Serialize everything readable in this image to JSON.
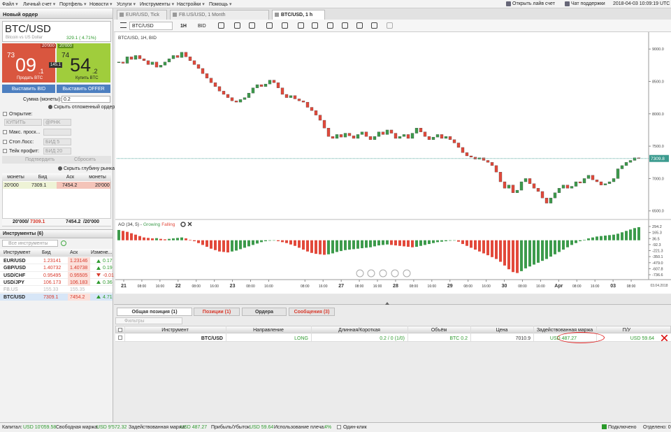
{
  "menu": {
    "items": [
      "Файл",
      "Личный счет",
      "Портфель",
      "Новости",
      "Услуги",
      "Инструменты",
      "Настройки",
      "Помощь"
    ],
    "live": "Открыть лайв счет",
    "chat": "Чат поддержки",
    "clock": "2018-04-03 10:09:19 UTC"
  },
  "order": {
    "title": "Новый ордер",
    "symbol": "BTC/USD",
    "description": "Bitcoin vs US Dollar",
    "change": "329.1 ( 4.71%)",
    "sell": {
      "small": "73",
      "big": "09",
      "frac": ".1",
      "label": "Продать BTC",
      "size": "20'000"
    },
    "buy": {
      "small": "74",
      "big": "54",
      "frac": ".2",
      "label": "Купить BTC",
      "size": "20'000"
    },
    "spread": "145.1",
    "bid_button": "Выставить BID",
    "offer_button": "Выставить OFFER",
    "amount_label": "Сумма (монеты):",
    "amount": "0.2",
    "hide_pending": "Скрыть отложенный ордер",
    "open_label": "Открытие:",
    "open_side": "КУПИТЬ",
    "open_type": "@PHK",
    "slippage": "Макс. проск...",
    "stop_loss": "Стоп Лосс:",
    "stop_value": "БИД 5",
    "take_profit": "Тейк профит:",
    "take_value": "БИД 20",
    "confirm": "Подтвердить",
    "reset": "Сбросить",
    "hide_depth": "Скрыть глубину рынка",
    "depth": {
      "headers": [
        "монеты",
        "Бид",
        "Аск",
        "монеты"
      ],
      "row": [
        "20'000",
        "7309.1",
        "7454.2",
        "20'000"
      ],
      "total_bid": "20'000/",
      "total_bid_price": "7309.1",
      "total_ask_price": "7454.2",
      "total_ask": "/20'000"
    }
  },
  "instruments": {
    "title": "Инструменты (6)",
    "search": "Все инструменты",
    "headers": [
      "Инструмент",
      "Бид",
      "Аск",
      "Измене..."
    ],
    "rows": [
      {
        "name": "EUR/USD",
        "bid": "1.23141",
        "ask": "1.23146",
        "change": "0.17"
      },
      {
        "name": "GBP/USD",
        "bid": "1.40732",
        "ask": "1.40738",
        "change": "0.19"
      },
      {
        "name": "USD/CHF",
        "bid": "0.95495",
        "ask": "0.95505",
        "change": "-0.01"
      },
      {
        "name": "USD/JPY",
        "bid": "106.173",
        "ask": "106.183",
        "change": "0.36"
      },
      {
        "name": "FB.US",
        "bid": "155.33",
        "ask": "155.35",
        "status": "inactive"
      },
      {
        "name": "BTC/USD",
        "bid": "7309.1",
        "ask": "7454.2",
        "change": "4.71",
        "selected": true
      }
    ]
  },
  "tabs": [
    "EUR/USD, Tick",
    "FB.US/USD, 1 Month",
    "BTC/USD, 1 h"
  ],
  "toolbar": {
    "symbol": "BTC/USD",
    "period": "1H",
    "side": "BID"
  },
  "chart_data": [
    {
      "type": "candlestick",
      "title": "BTC/USD, 1H, BID",
      "up_color": "#3d9b4c",
      "down_color": "#e2493b",
      "closes": [
        8800,
        8780,
        8880,
        8840,
        8900,
        8850,
        8820,
        8760,
        8800,
        8720,
        8750,
        8800,
        8850,
        8900,
        8870,
        8950,
        8880,
        8820,
        8760,
        8700,
        8620,
        8550,
        8480,
        8420,
        8350,
        8300,
        8250,
        8200,
        8180,
        8220,
        8250,
        8320,
        8400,
        8450,
        8420,
        8460,
        8520,
        8480,
        8400,
        8300,
        8250,
        8280,
        8230,
        8200,
        8180,
        8100,
        8050,
        7980,
        7900,
        7780,
        7650,
        7620,
        7680,
        7640,
        7700,
        7660,
        7620,
        7680,
        7720,
        7650,
        7600,
        7650,
        7720,
        7680,
        7750,
        7700,
        7620,
        7650,
        7680,
        7620,
        7700,
        7780,
        7720,
        7650,
        7600,
        7640,
        7680,
        7620,
        7650,
        7600,
        7550,
        7480,
        7400,
        7350,
        7330,
        7300,
        7320,
        7280,
        7250,
        7200,
        7100,
        6950,
        6850,
        6900,
        6780,
        6820,
        6950,
        7000,
        6920,
        6850,
        6800,
        6700,
        6620,
        6700,
        6780,
        6850,
        6900,
        6850,
        6880,
        6950,
        6930,
        7000,
        7050,
        6980,
        6950,
        6900,
        6920,
        6950,
        7000,
        7150,
        7200,
        7250,
        7280,
        7320,
        7309.8
      ],
      "ylim": [
        6389,
        9088
      ],
      "yticks": [
        {
          "value": 9000,
          "label": "9000.0"
        },
        {
          "value": 8500,
          "label": "8500.0"
        },
        {
          "value": 8000,
          "label": "8000.0"
        },
        {
          "value": 7500,
          "label": "7500.0"
        },
        {
          "value": 7000,
          "label": "7000.0"
        },
        {
          "value": 6500,
          "label": "6500.0"
        }
      ],
      "x_labels": [
        "21",
        "08:00",
        "16:00",
        "22",
        "08:00",
        "16:00",
        "23",
        "08:00",
        "16:00",
        null,
        "08:00",
        "16:00",
        "27",
        "08:00",
        "16:00",
        "28",
        "08:00",
        "16:00",
        "29",
        "08:00",
        "16:00",
        "30",
        "08:00",
        "16:00",
        "Apr",
        "08:00",
        "16:00",
        "03",
        "08:00"
      ],
      "date": "03.04.2018",
      "last_price_line": true
    },
    {
      "type": "bar",
      "title": "AO (34, 5) -",
      "legend": [
        {
          "name": "Growing",
          "color": "#3d9b4c"
        },
        {
          "name": "Falling",
          "color": "#e2493b"
        }
      ],
      "values": [
        220,
        200,
        180,
        150,
        120,
        90,
        60,
        50,
        40,
        45,
        30,
        20,
        30,
        40,
        50,
        60,
        40,
        10,
        -20,
        -60,
        -100,
        -140,
        -180,
        -210,
        -240,
        -250,
        -260,
        -240,
        -220,
        -190,
        -160,
        -130,
        -100,
        -70,
        -40,
        -20,
        -10,
        -5,
        -20,
        -40,
        -60,
        -90,
        -120,
        -160,
        -200,
        -240,
        -270,
        -290,
        -300,
        -310,
        -300,
        -280,
        -250,
        -230,
        -210,
        -200,
        -190,
        -180,
        -170,
        -160,
        -150,
        -130,
        -110,
        -100,
        -90,
        -100,
        -110,
        -120,
        -130,
        -140,
        -150,
        -140,
        -120,
        -100,
        -80,
        -60,
        -40,
        -30,
        -20,
        -10,
        -5,
        -30,
        -80,
        -120,
        -160,
        -200,
        -240,
        -280,
        -320,
        -360,
        -400,
        -460,
        -540,
        -620,
        -680,
        -700,
        -660,
        -600,
        -560,
        -520,
        -480,
        -440,
        -400,
        -350,
        -300,
        -250,
        -200,
        -150,
        -100,
        -60,
        -20,
        10,
        40,
        60,
        80,
        90,
        100,
        110,
        120,
        140,
        170,
        200,
        230,
        260,
        280
      ],
      "ylim": [
        -811,
        384
      ],
      "yticks": [
        294.2,
        165.3,
        36.5,
        -92.3,
        -221.3,
        -350.1,
        {
          "value": -479,
          "label": "-479.0"
        },
        -607.8,
        -736.6
      ]
    }
  ],
  "positions": {
    "tabs": [
      {
        "label": "Общая позиция (1)"
      },
      {
        "label": "Позиции (1)",
        "alert": true
      },
      {
        "label": "Ордера"
      },
      {
        "label": "Сообщения (3)",
        "alert": true
      }
    ],
    "filter": "Фильтры",
    "headers": [
      "Инструмент",
      "Направление",
      "Длинная/Короткая",
      "Объём",
      "Цена",
      "Задействованная маржа",
      "П/У"
    ],
    "row": [
      "BTC/USD",
      "LONG",
      "0.2 / 0 (1/0)",
      "BTC 0.2",
      "7010.9",
      "USD 487.27",
      "USD 59.64"
    ]
  },
  "status": {
    "items": [
      {
        "label": "Капитал:",
        "value": "USD 10'059.58"
      },
      {
        "label": "Свободная маржа:",
        "value": "USD 9'572.32"
      },
      {
        "label": "Задействованная маржа:",
        "value": "USD 487.27"
      },
      {
        "label": "Прибыль/Убыток:",
        "value": "USD 59.64"
      },
      {
        "label": "Использование плеча:",
        "value": "4%"
      }
    ],
    "one_click": "Один-клик",
    "connected": "Подключено",
    "detached": "Отделено: 0%"
  }
}
